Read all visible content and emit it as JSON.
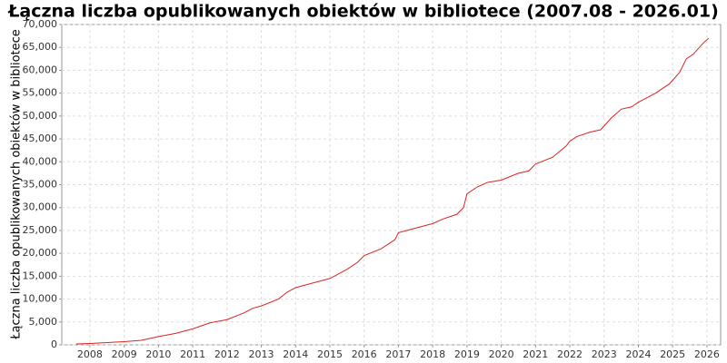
{
  "chart_data": {
    "type": "line",
    "title": "Łączna liczba opublikowanych obiektów w bibliotece (2007.08 - 2026.01)",
    "y_label": "Łączna liczba opublikowanych obiektów w bibliotece",
    "x": [
      2007.6,
      2008.0,
      2008.5,
      2009.0,
      2009.5,
      2010.0,
      2010.5,
      2011.0,
      2011.5,
      2012.0,
      2012.5,
      2012.75,
      2013.0,
      2013.5,
      2013.75,
      2014.0,
      2014.5,
      2015.0,
      2015.5,
      2015.8,
      2016.0,
      2016.5,
      2016.9,
      2017.0,
      2017.5,
      2018.0,
      2018.3,
      2018.7,
      2018.9,
      2019.0,
      2019.3,
      2019.6,
      2020.0,
      2020.5,
      2020.8,
      2021.0,
      2021.5,
      2021.9,
      2022.0,
      2022.2,
      2022.6,
      2022.9,
      2023.2,
      2023.5,
      2023.8,
      2024.0,
      2024.5,
      2024.9,
      2025.2,
      2025.4,
      2025.6,
      2025.9,
      2026.05
    ],
    "series": [
      {
        "name": "Łączna liczba",
        "color": "#dd2222",
        "values": [
          200,
          300,
          500,
          700,
          1000,
          1800,
          2500,
          3500,
          4800,
          5500,
          7000,
          8000,
          8500,
          10000,
          11500,
          12500,
          13500,
          14500,
          16500,
          18000,
          19500,
          21000,
          23000,
          24500,
          25500,
          26500,
          27500,
          28500,
          30000,
          33000,
          34500,
          35500,
          36000,
          37500,
          38000,
          39500,
          41000,
          43500,
          44500,
          45500,
          46500,
          47000,
          49500,
          51500,
          52000,
          53000,
          55000,
          57000,
          59500,
          62500,
          63500,
          66000,
          67000
        ]
      }
    ],
    "xlim": [
      2007.18,
      2026.4
    ],
    "xticks": [
      2008,
      2009,
      2010,
      2011,
      2012,
      2013,
      2014,
      2015,
      2016,
      2017,
      2018,
      2019,
      2020,
      2021,
      2022,
      2023,
      2024,
      2025,
      2026
    ],
    "ylim": [
      0,
      70000
    ],
    "yticks": [
      0,
      {
        "value": 5000,
        "label": "5,000"
      },
      {
        "value": 10000,
        "label": "10,000"
      },
      {
        "value": 15000,
        "label": "15,000"
      },
      {
        "value": 20000,
        "label": "20,000"
      },
      {
        "value": 25000,
        "label": "25,000"
      },
      {
        "value": 30000,
        "label": "30,000"
      },
      {
        "value": 35000,
        "label": "35,000"
      },
      {
        "value": 40000,
        "label": "40,000"
      },
      {
        "value": 45000,
        "label": "45,000"
      },
      {
        "value": 50000,
        "label": "50,000"
      },
      {
        "value": 55000,
        "label": "55,000"
      },
      {
        "value": 60000,
        "label": "60,000"
      },
      {
        "value": 65000,
        "label": "65,000"
      },
      {
        "value": 70000,
        "label": "70,000"
      }
    ],
    "grid": true
  }
}
